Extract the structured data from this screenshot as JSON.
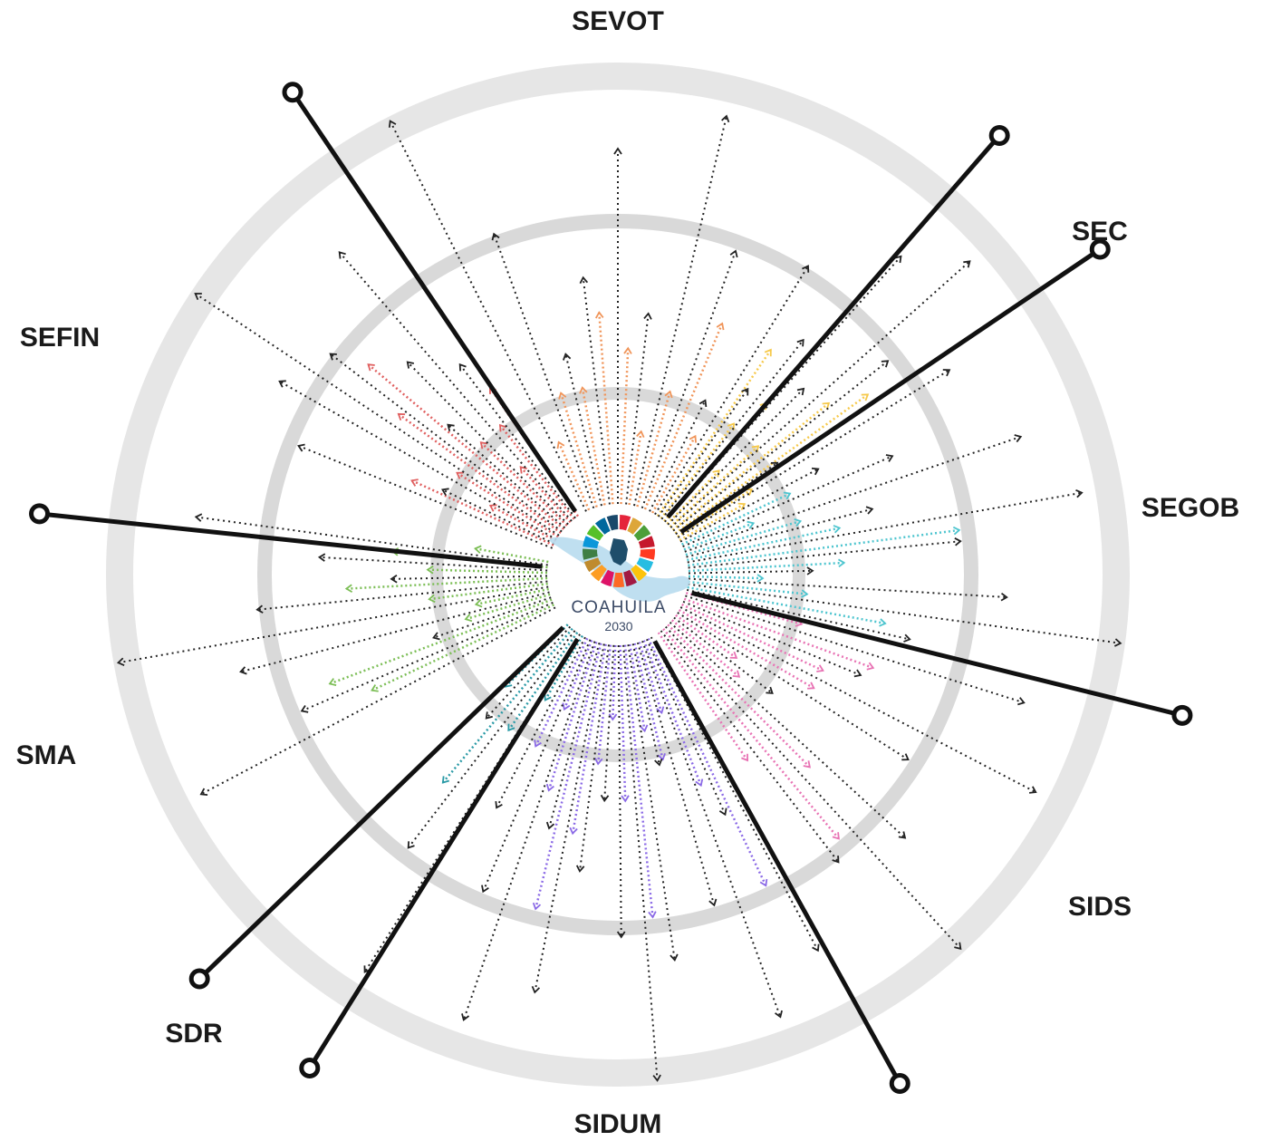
{
  "sectors": [
    {
      "label": "SEVOT",
      "color": "#f0955a"
    },
    {
      "label": "SEC",
      "color": "#f6c94a"
    },
    {
      "label": "SEGOB",
      "color": "#4ec5cf"
    },
    {
      "label": "SIDS",
      "color": "#e873b4"
    },
    {
      "label": "SIDUM",
      "color": "#8b6ae6"
    },
    {
      "label": "SDR",
      "color": "#2a9aa6"
    },
    {
      "label": "SMA",
      "color": "#7cbe56"
    },
    {
      "label": "SEFIN",
      "color": "#e06060"
    }
  ],
  "logo": {
    "name": "COAHUILA",
    "year": "2030",
    "sdg_colors": [
      "#e5243b",
      "#dda63a",
      "#4c9f38",
      "#c5192d",
      "#ff3a21",
      "#26bde2",
      "#fcc30b",
      "#a21942",
      "#fd6925",
      "#dd1367",
      "#fd9d24",
      "#bf8b2e",
      "#3f7e44",
      "#0a97d9",
      "#56c02b",
      "#00689d",
      "#19486a"
    ]
  },
  "colors": {
    "ring": "#e6e6e6",
    "ring_inner": "#d9d9d9",
    "axis": "#111111",
    "arrow_black": "#222222",
    "map_fill": "#b8dcee"
  }
}
